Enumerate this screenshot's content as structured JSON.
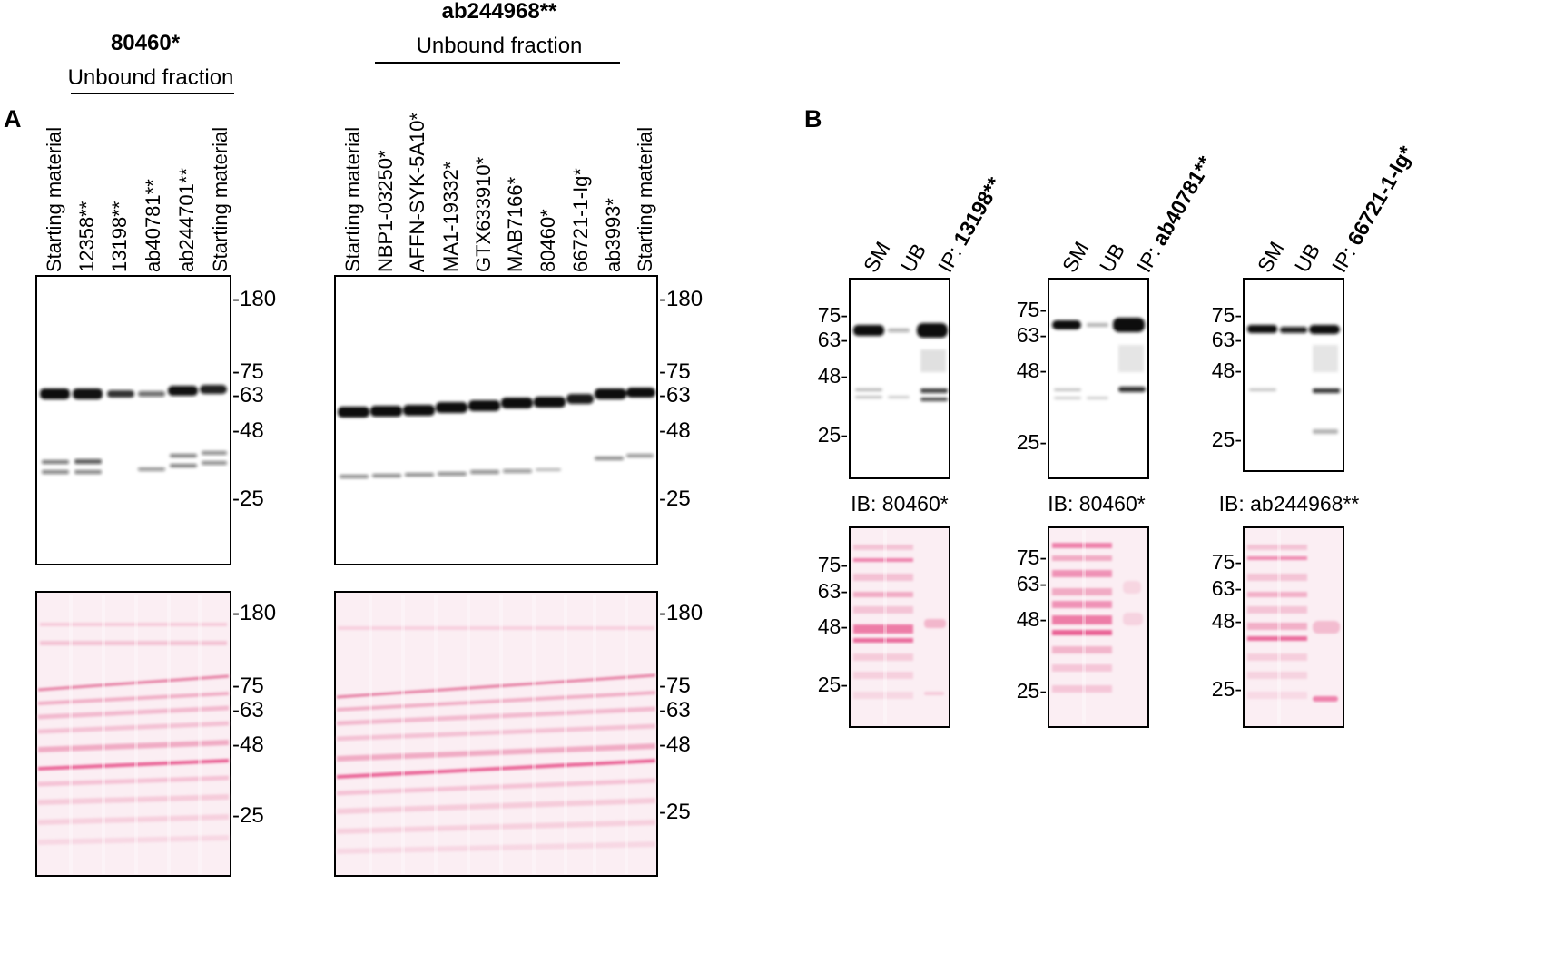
{
  "panel_a": {
    "letter": "A",
    "left": {
      "title": "80460*",
      "subtitle": "Unbound fraction",
      "lanes": [
        "Starting material",
        "12358**",
        "13198**",
        "ab40781**",
        "ab244701**",
        "Starting material"
      ],
      "markers_blot": [
        "-180",
        "-75",
        "-63",
        "-48",
        "-25"
      ],
      "markers_ponceau": [
        "-180",
        "-75",
        "-63",
        "-48",
        "-25"
      ],
      "band_main_intensity": [
        1.0,
        1.0,
        0.7,
        0.4,
        0.9,
        0.85
      ]
    },
    "right": {
      "title": "ab244968**",
      "subtitle": "Unbound fraction",
      "lanes": [
        "Starting material",
        "NBP1-03250*",
        "AFFN-SYK-5A10*",
        "MA1-19332*",
        "GTX633910*",
        "MAB7166*",
        "80460*",
        "66721-1-Ig*",
        "ab3993*",
        "Starting material"
      ],
      "markers_blot": [
        "-180",
        "-75",
        "-63",
        "-48",
        "-25"
      ],
      "markers_ponceau": [
        "-180",
        "-75",
        "-63",
        "-48",
        "-25"
      ]
    }
  },
  "panel_b": {
    "letter": "B",
    "blots": [
      {
        "lanes": [
          "SM",
          "UB"
        ],
        "ip_prefix": "IP: ",
        "ip_antibody": "13198**",
        "markers_blot": [
          "75-",
          "63-",
          "48-",
          "25-"
        ],
        "ib_label": "IB: 80460*",
        "markers_ponceau": [
          "75-",
          "63-",
          "48-",
          "25-"
        ]
      },
      {
        "lanes": [
          "SM",
          "UB"
        ],
        "ip_prefix": "IP: ",
        "ip_antibody": "ab40781**",
        "markers_blot": [
          "75-",
          "63-",
          "48-",
          "25-"
        ],
        "ib_label": "IB: 80460*",
        "markers_ponceau": [
          "75-",
          "63-",
          "48-",
          "25-"
        ]
      },
      {
        "lanes": [
          "SM",
          "UB"
        ],
        "ip_prefix": "IP: ",
        "ip_antibody": "66721-1-Ig*",
        "markers_blot": [
          "75-",
          "63-",
          "48-",
          "25-"
        ],
        "ib_label": "IB: ab244968**",
        "markers_ponceau": [
          "75-",
          "63-",
          "48-",
          "25-"
        ]
      }
    ]
  },
  "colors": {
    "band": "#111111",
    "ponceau_bg": "#fbeef3",
    "ponceau_band": "#e8558d",
    "frame": "#000000"
  }
}
